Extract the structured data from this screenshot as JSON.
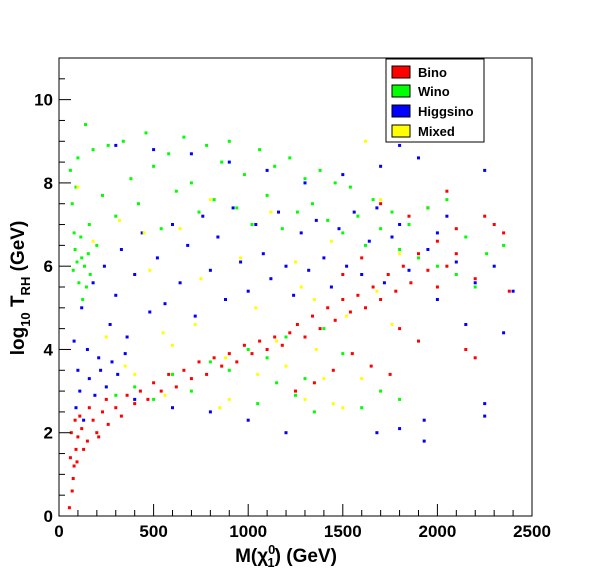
{
  "chart_data": {
    "type": "scatter",
    "title": "",
    "xlabel_main": "M(χ",
    "xlabel_sup": "0",
    "xlabel_sub": "1",
    "xlabel_tail": ") (GeV)",
    "ylabel_main": "log",
    "ylabel_sub1": "10",
    "ylabel_mid": " T",
    "ylabel_sub2": "RH",
    "ylabel_tail": " (GeV)",
    "xlim": [
      0,
      2500
    ],
    "ylim": [
      0,
      11
    ],
    "x_ticks": [
      0,
      500,
      1000,
      1500,
      2000,
      2500
    ],
    "y_ticks": [
      0,
      2,
      4,
      6,
      8,
      10
    ],
    "legend_position": "top-right",
    "series": [
      {
        "name": "Bino",
        "color": "#ff0000",
        "points": [
          [
            55,
            0.2
          ],
          [
            70,
            0.6
          ],
          [
            80,
            1.2
          ],
          [
            90,
            1.6
          ],
          [
            100,
            1.9
          ],
          [
            120,
            2.1
          ],
          [
            150,
            1.8
          ],
          [
            180,
            2.3
          ],
          [
            200,
            2.0
          ],
          [
            230,
            2.5
          ],
          [
            260,
            2.2
          ],
          [
            300,
            2.6
          ],
          [
            330,
            2.4
          ],
          [
            360,
            2.9
          ],
          [
            400,
            2.7
          ],
          [
            430,
            3.0
          ],
          [
            470,
            2.8
          ],
          [
            500,
            3.2
          ],
          [
            540,
            3.0
          ],
          [
            580,
            3.4
          ],
          [
            620,
            3.1
          ],
          [
            660,
            3.5
          ],
          [
            700,
            3.3
          ],
          [
            740,
            3.7
          ],
          [
            780,
            3.4
          ],
          [
            820,
            3.8
          ],
          [
            860,
            3.6
          ],
          [
            900,
            3.9
          ],
          [
            940,
            3.7
          ],
          [
            980,
            4.1
          ],
          [
            1020,
            3.9
          ],
          [
            1060,
            4.2
          ],
          [
            1100,
            4.0
          ],
          [
            1140,
            4.3
          ],
          [
            1180,
            4.1
          ],
          [
            1220,
            4.4
          ],
          [
            1260,
            4.6
          ],
          [
            1300,
            4.3
          ],
          [
            1340,
            4.8
          ],
          [
            1380,
            4.5
          ],
          [
            1420,
            5.0
          ],
          [
            1460,
            4.7
          ],
          [
            1500,
            5.2
          ],
          [
            1540,
            4.9
          ],
          [
            1580,
            5.3
          ],
          [
            1620,
            5.0
          ],
          [
            1660,
            5.5
          ],
          [
            1700,
            5.2
          ],
          [
            1740,
            5.8
          ],
          [
            1780,
            5.4
          ],
          [
            1820,
            6.0
          ],
          [
            1860,
            5.6
          ],
          [
            1900,
            6.3
          ],
          [
            1950,
            5.9
          ],
          [
            2000,
            6.6
          ],
          [
            2050,
            6.0
          ],
          [
            2100,
            6.9
          ],
          [
            2200,
            5.7
          ],
          [
            2300,
            7.0
          ],
          [
            2380,
            5.4
          ],
          [
            1800,
            4.5
          ],
          [
            1900,
            4.2
          ],
          [
            2150,
            4.0
          ],
          [
            2200,
            3.8
          ],
          [
            1750,
            3.4
          ],
          [
            1650,
            3.6
          ],
          [
            1550,
            3.9
          ],
          [
            1450,
            3.5
          ],
          [
            1350,
            3.2
          ],
          [
            1250,
            3.0
          ],
          [
            60,
            1.4
          ],
          [
            65,
            2.0
          ],
          [
            75,
            0.9
          ],
          [
            85,
            2.3
          ],
          [
            95,
            1.3
          ],
          [
            110,
            2.4
          ],
          [
            130,
            1.6
          ],
          [
            160,
            2.6
          ],
          [
            210,
            1.9
          ],
          [
            250,
            2.8
          ],
          [
            1700,
            7.5
          ],
          [
            1850,
            7.2
          ],
          [
            1950,
            7.4
          ],
          [
            2050,
            7.8
          ],
          [
            2250,
            7.2
          ],
          [
            2350,
            6.8
          ],
          [
            2100,
            6.3
          ],
          [
            2000,
            5.5
          ],
          [
            1600,
            6.2
          ],
          [
            1500,
            5.8
          ]
        ]
      },
      {
        "name": "Wino",
        "color": "#00ff00",
        "points": [
          [
            60,
            8.3
          ],
          [
            70,
            7.5
          ],
          [
            80,
            6.8
          ],
          [
            90,
            7.9
          ],
          [
            100,
            8.6
          ],
          [
            120,
            6.2
          ],
          [
            140,
            9.4
          ],
          [
            160,
            7.0
          ],
          [
            180,
            8.8
          ],
          [
            200,
            6.5
          ],
          [
            230,
            7.7
          ],
          [
            260,
            8.9
          ],
          [
            300,
            7.2
          ],
          [
            340,
            9.0
          ],
          [
            380,
            8.1
          ],
          [
            420,
            7.5
          ],
          [
            460,
            9.2
          ],
          [
            500,
            8.4
          ],
          [
            540,
            6.9
          ],
          [
            580,
            8.7
          ],
          [
            620,
            7.8
          ],
          [
            660,
            9.1
          ],
          [
            700,
            8.0
          ],
          [
            740,
            7.3
          ],
          [
            780,
            8.9
          ],
          [
            820,
            7.6
          ],
          [
            860,
            8.5
          ],
          [
            900,
            9.0
          ],
          [
            940,
            7.4
          ],
          [
            980,
            8.2
          ],
          [
            1020,
            7.0
          ],
          [
            1060,
            8.8
          ],
          [
            1100,
            7.7
          ],
          [
            1140,
            8.4
          ],
          [
            1180,
            6.9
          ],
          [
            1220,
            8.6
          ],
          [
            1260,
            7.3
          ],
          [
            1300,
            8.1
          ],
          [
            1340,
            7.5
          ],
          [
            1380,
            8.3
          ],
          [
            1420,
            7.1
          ],
          [
            1460,
            8.0
          ],
          [
            1500,
            6.8
          ],
          [
            1540,
            7.9
          ],
          [
            1580,
            7.2
          ],
          [
            1620,
            6.5
          ],
          [
            1660,
            7.6
          ],
          [
            1700,
            6.9
          ],
          [
            1760,
            7.3
          ],
          [
            1800,
            6.4
          ],
          [
            1850,
            7.0
          ],
          [
            1900,
            6.2
          ],
          [
            1950,
            7.4
          ],
          [
            2000,
            6.0
          ],
          [
            2050,
            7.6
          ],
          [
            2100,
            5.8
          ],
          [
            2150,
            6.7
          ],
          [
            2200,
            5.5
          ],
          [
            2260,
            6.3
          ],
          [
            2350,
            6.5
          ],
          [
            300,
            2.9
          ],
          [
            400,
            3.1
          ],
          [
            500,
            2.8
          ],
          [
            600,
            3.4
          ],
          [
            700,
            3.0
          ],
          [
            800,
            3.7
          ],
          [
            900,
            3.5
          ],
          [
            1000,
            4.0
          ],
          [
            1100,
            3.8
          ],
          [
            1200,
            4.3
          ],
          [
            1300,
            3.3
          ],
          [
            1400,
            4.5
          ],
          [
            1500,
            3.9
          ],
          [
            1600,
            2.6
          ],
          [
            1700,
            3.0
          ],
          [
            1800,
            2.8
          ],
          [
            1350,
            2.5
          ],
          [
            1250,
            2.9
          ],
          [
            1150,
            3.2
          ],
          [
            1050,
            2.7
          ],
          [
            75,
            5.9
          ],
          [
            85,
            6.4
          ],
          [
            95,
            6.1
          ],
          [
            105,
            5.6
          ],
          [
            115,
            6.7
          ],
          [
            125,
            5.2
          ],
          [
            135,
            6.0
          ],
          [
            145,
            5.5
          ],
          [
            155,
            6.3
          ],
          [
            165,
            5.8
          ]
        ]
      },
      {
        "name": "Higgsino",
        "color": "#0000ff",
        "points": [
          [
            80,
            4.2
          ],
          [
            100,
            3.5
          ],
          [
            120,
            5.0
          ],
          [
            150,
            4.0
          ],
          [
            180,
            5.6
          ],
          [
            210,
            3.8
          ],
          [
            240,
            6.0
          ],
          [
            270,
            4.6
          ],
          [
            300,
            5.3
          ],
          [
            330,
            6.4
          ],
          [
            360,
            4.3
          ],
          [
            400,
            5.8
          ],
          [
            440,
            6.8
          ],
          [
            480,
            4.9
          ],
          [
            520,
            6.2
          ],
          [
            560,
            5.1
          ],
          [
            600,
            7.0
          ],
          [
            640,
            5.6
          ],
          [
            680,
            6.5
          ],
          [
            720,
            4.8
          ],
          [
            760,
            7.2
          ],
          [
            800,
            5.9
          ],
          [
            840,
            6.7
          ],
          [
            880,
            5.2
          ],
          [
            920,
            7.4
          ],
          [
            960,
            6.1
          ],
          [
            1000,
            5.4
          ],
          [
            1040,
            7.0
          ],
          [
            1080,
            6.3
          ],
          [
            1120,
            5.7
          ],
          [
            1160,
            7.3
          ],
          [
            1200,
            6.0
          ],
          [
            1240,
            5.3
          ],
          [
            1280,
            6.8
          ],
          [
            1320,
            5.9
          ],
          [
            1360,
            7.1
          ],
          [
            1400,
            6.2
          ],
          [
            1440,
            5.5
          ],
          [
            1480,
            6.9
          ],
          [
            1520,
            6.0
          ],
          [
            1560,
            7.3
          ],
          [
            1600,
            5.8
          ],
          [
            1640,
            6.6
          ],
          [
            1680,
            7.4
          ],
          [
            1720,
            5.6
          ],
          [
            1760,
            6.7
          ],
          [
            1800,
            7.0
          ],
          [
            1850,
            5.9
          ],
          [
            1900,
            8.6
          ],
          [
            1950,
            6.4
          ],
          [
            2000,
            5.2
          ],
          [
            2050,
            7.2
          ],
          [
            2100,
            6.1
          ],
          [
            2150,
            4.6
          ],
          [
            2200,
            5.6
          ],
          [
            2250,
            8.3
          ],
          [
            2300,
            6.0
          ],
          [
            2350,
            4.4
          ],
          [
            2400,
            5.4
          ],
          [
            2250,
            2.4
          ],
          [
            2250,
            2.7
          ],
          [
            1930,
            2.3
          ],
          [
            1930,
            1.8
          ],
          [
            1800,
            2.1
          ],
          [
            1680,
            2.0
          ],
          [
            1200,
            2.0
          ],
          [
            1000,
            2.3
          ],
          [
            800,
            2.5
          ],
          [
            600,
            2.6
          ],
          [
            400,
            2.8
          ],
          [
            90,
            2.6
          ],
          [
            110,
            3.0
          ],
          [
            130,
            2.3
          ],
          [
            160,
            3.3
          ],
          [
            190,
            2.9
          ],
          [
            220,
            3.5
          ],
          [
            250,
            3.1
          ],
          [
            280,
            3.7
          ],
          [
            310,
            3.4
          ],
          [
            350,
            3.9
          ],
          [
            1300,
            8.0
          ],
          [
            1100,
            8.3
          ],
          [
            900,
            8.5
          ],
          [
            700,
            8.7
          ],
          [
            500,
            8.8
          ],
          [
            300,
            8.9
          ],
          [
            1500,
            8.2
          ],
          [
            1700,
            8.4
          ],
          [
            1800,
            8.9
          ],
          [
            2000,
            6.8
          ]
        ]
      },
      {
        "name": "Mixed",
        "color": "#ffff00",
        "points": [
          [
            100,
            7.9
          ],
          [
            180,
            6.6
          ],
          [
            250,
            4.3
          ],
          [
            320,
            7.1
          ],
          [
            400,
            3.4
          ],
          [
            480,
            5.9
          ],
          [
            560,
            2.9
          ],
          [
            640,
            6.9
          ],
          [
            720,
            4.6
          ],
          [
            800,
            7.6
          ],
          [
            880,
            3.8
          ],
          [
            960,
            6.2
          ],
          [
            1040,
            5.0
          ],
          [
            1120,
            7.3
          ],
          [
            1200,
            3.6
          ],
          [
            1280,
            5.5
          ],
          [
            1360,
            4.0
          ],
          [
            1440,
            6.6
          ],
          [
            1520,
            4.8
          ],
          [
            1600,
            3.3
          ],
          [
            1620,
            9.0
          ],
          [
            1680,
            5.4
          ],
          [
            1700,
            7.6
          ],
          [
            1760,
            4.6
          ],
          [
            1800,
            6.3
          ],
          [
            1300,
            2.8
          ],
          [
            1400,
            3.3
          ],
          [
            1500,
            2.6
          ],
          [
            900,
            2.8
          ],
          [
            600,
            4.1
          ],
          [
            350,
            3.6
          ],
          [
            450,
            6.8
          ],
          [
            550,
            4.4
          ],
          [
            750,
            5.7
          ],
          [
            850,
            2.6
          ],
          [
            1050,
            3.4
          ],
          [
            1150,
            4.2
          ],
          [
            1250,
            6.1
          ],
          [
            1350,
            5.2
          ],
          [
            1450,
            2.7
          ]
        ]
      }
    ]
  }
}
